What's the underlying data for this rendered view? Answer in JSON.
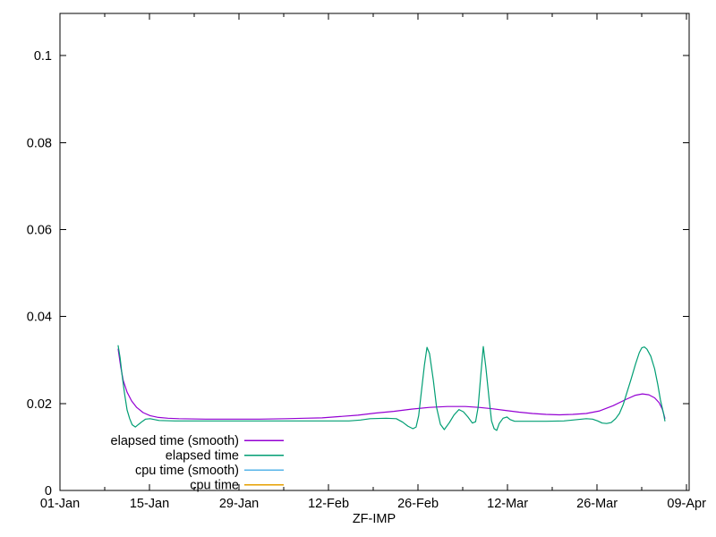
{
  "colors": {
    "background": "#ffffff",
    "axis": "#000000",
    "text": "#000000",
    "series_purple": "#9400d3",
    "series_green": "#009e73",
    "series_cyan": "#56b4e9",
    "series_orange": "#e69f00"
  },
  "chart_data": {
    "type": "line",
    "title": "",
    "xlabel": "ZF-IMP",
    "ylabel": "",
    "x_unit": "days since 01-Jan",
    "xlim": [
      0,
      98.4
    ],
    "ylim": [
      0,
      0.1097
    ],
    "grid": "off",
    "legend_position": "inside bottom-left",
    "x_ticks": [
      {
        "day": 0,
        "label": "01-Jan"
      },
      {
        "day": 14,
        "label": "15-Jan"
      },
      {
        "day": 28,
        "label": "29-Jan"
      },
      {
        "day": 42,
        "label": "12-Feb"
      },
      {
        "day": 56,
        "label": "26-Feb"
      },
      {
        "day": 70,
        "label": "12-Mar"
      },
      {
        "day": 84,
        "label": "26-Mar"
      },
      {
        "day": 98,
        "label": "09-Apr"
      }
    ],
    "x_minor_days": [
      7,
      21,
      35,
      49,
      63,
      77,
      91
    ],
    "y_ticks": [
      {
        "value": 0,
        "label": "0"
      },
      {
        "value": 0.02,
        "label": "0.02"
      },
      {
        "value": 0.04,
        "label": "0.04"
      },
      {
        "value": 0.06,
        "label": "0.06"
      },
      {
        "value": 0.08,
        "label": "0.08"
      },
      {
        "value": 0.1,
        "label": "0.1"
      }
    ],
    "series": [
      {
        "name": "elapsed time (smooth)",
        "color": "#9400d3",
        "points": [
          [
            9.1,
            0.0325
          ],
          [
            9.5,
            0.0284
          ],
          [
            9.9,
            0.0253
          ],
          [
            10.5,
            0.0226
          ],
          [
            11.2,
            0.0206
          ],
          [
            12.0,
            0.0191
          ],
          [
            13.0,
            0.0179
          ],
          [
            14.1,
            0.0172
          ],
          [
            15.4,
            0.0168
          ],
          [
            16.9,
            0.0166
          ],
          [
            18.6,
            0.0165
          ],
          [
            22.8,
            0.0164
          ],
          [
            27.0,
            0.0164
          ],
          [
            31.2,
            0.0164
          ],
          [
            35.4,
            0.0165
          ],
          [
            38.2,
            0.0166
          ],
          [
            41.0,
            0.0167
          ],
          [
            43.8,
            0.017
          ],
          [
            46.6,
            0.0173
          ],
          [
            49.4,
            0.0178
          ],
          [
            52.2,
            0.0182
          ],
          [
            55.0,
            0.0187
          ],
          [
            57.8,
            0.0191
          ],
          [
            60.6,
            0.0193
          ],
          [
            62.0,
            0.0193
          ],
          [
            63.4,
            0.0193
          ],
          [
            65.5,
            0.0191
          ],
          [
            67.6,
            0.0188
          ],
          [
            69.7,
            0.0184
          ],
          [
            71.8,
            0.018
          ],
          [
            73.9,
            0.0177
          ],
          [
            76.0,
            0.0175
          ],
          [
            78.1,
            0.0174
          ],
          [
            80.2,
            0.0175
          ],
          [
            82.3,
            0.0177
          ],
          [
            84.4,
            0.0183
          ],
          [
            86.5,
            0.0195
          ],
          [
            88.6,
            0.021
          ],
          [
            90.0,
            0.0219
          ],
          [
            91.1,
            0.0222
          ],
          [
            92.1,
            0.022
          ],
          [
            93.0,
            0.0213
          ],
          [
            93.7,
            0.0202
          ],
          [
            94.2,
            0.0187
          ],
          [
            94.6,
            0.0166
          ]
        ]
      },
      {
        "name": "elapsed time",
        "color": "#009e73",
        "points": [
          [
            9.1,
            0.0333
          ],
          [
            9.4,
            0.0305
          ],
          [
            9.7,
            0.0267
          ],
          [
            10.1,
            0.0222
          ],
          [
            10.5,
            0.0185
          ],
          [
            10.9,
            0.0165
          ],
          [
            11.3,
            0.0151
          ],
          [
            11.8,
            0.0146
          ],
          [
            12.3,
            0.0152
          ],
          [
            12.9,
            0.0159
          ],
          [
            13.4,
            0.0164
          ],
          [
            14.1,
            0.0165
          ],
          [
            14.8,
            0.0163
          ],
          [
            15.5,
            0.0161
          ],
          [
            18.0,
            0.016
          ],
          [
            22.0,
            0.016
          ],
          [
            26.0,
            0.016
          ],
          [
            30.0,
            0.016
          ],
          [
            34.0,
            0.016
          ],
          [
            38.0,
            0.016
          ],
          [
            42.0,
            0.016
          ],
          [
            45.2,
            0.016
          ],
          [
            47.0,
            0.0162
          ],
          [
            48.5,
            0.0165
          ],
          [
            51.0,
            0.0166
          ],
          [
            52.6,
            0.0165
          ],
          [
            53.6,
            0.0157
          ],
          [
            54.4,
            0.0148
          ],
          [
            55.2,
            0.0142
          ],
          [
            55.7,
            0.0146
          ],
          [
            56.1,
            0.0172
          ],
          [
            56.5,
            0.0225
          ],
          [
            57.0,
            0.0288
          ],
          [
            57.4,
            0.0329
          ],
          [
            57.8,
            0.0315
          ],
          [
            58.4,
            0.0253
          ],
          [
            58.9,
            0.0191
          ],
          [
            59.5,
            0.0152
          ],
          [
            60.1,
            0.014
          ],
          [
            60.9,
            0.0156
          ],
          [
            61.6,
            0.0173
          ],
          [
            62.4,
            0.0186
          ],
          [
            63.1,
            0.0181
          ],
          [
            63.8,
            0.0169
          ],
          [
            64.5,
            0.0155
          ],
          [
            65.0,
            0.0158
          ],
          [
            65.4,
            0.0191
          ],
          [
            65.8,
            0.0263
          ],
          [
            66.2,
            0.0331
          ],
          [
            66.6,
            0.0284
          ],
          [
            67.1,
            0.0212
          ],
          [
            67.5,
            0.016
          ],
          [
            67.9,
            0.0142
          ],
          [
            68.3,
            0.0138
          ],
          [
            68.7,
            0.0154
          ],
          [
            69.3,
            0.0166
          ],
          [
            69.9,
            0.0169
          ],
          [
            70.4,
            0.0163
          ],
          [
            71.1,
            0.0159
          ],
          [
            73.2,
            0.0159
          ],
          [
            76.0,
            0.0159
          ],
          [
            78.8,
            0.016
          ],
          [
            80.9,
            0.0163
          ],
          [
            82.3,
            0.0165
          ],
          [
            83.3,
            0.0164
          ],
          [
            84.1,
            0.016
          ],
          [
            84.8,
            0.0155
          ],
          [
            85.5,
            0.0154
          ],
          [
            86.2,
            0.0156
          ],
          [
            86.9,
            0.0165
          ],
          [
            87.5,
            0.0177
          ],
          [
            88.1,
            0.0198
          ],
          [
            88.6,
            0.0222
          ],
          [
            89.3,
            0.0255
          ],
          [
            90.0,
            0.029
          ],
          [
            90.6,
            0.0317
          ],
          [
            91.0,
            0.0328
          ],
          [
            91.4,
            0.033
          ],
          [
            91.8,
            0.0325
          ],
          [
            92.4,
            0.0309
          ],
          [
            93.0,
            0.028
          ],
          [
            93.5,
            0.0243
          ],
          [
            93.9,
            0.0208
          ],
          [
            94.4,
            0.0177
          ],
          [
            94.6,
            0.016
          ]
        ]
      },
      {
        "name": "cpu time (smooth)",
        "color": "#56b4e9",
        "points": []
      },
      {
        "name": "cpu time",
        "color": "#e69f00",
        "points": []
      }
    ]
  }
}
